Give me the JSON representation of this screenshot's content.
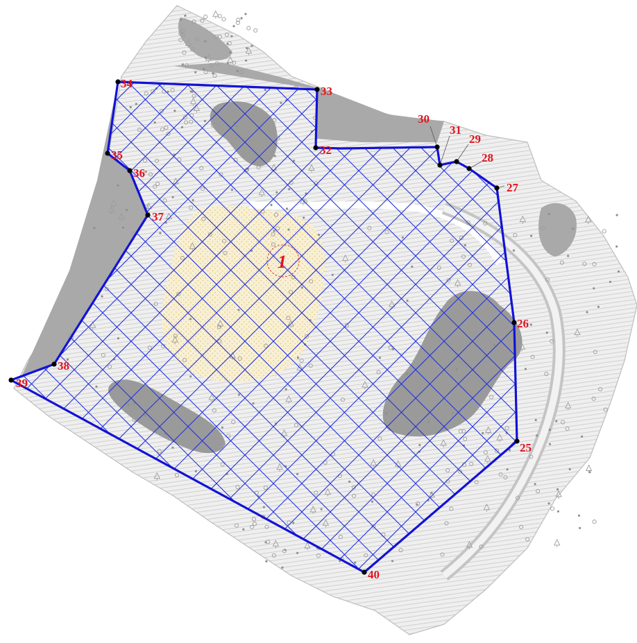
{
  "map": {
    "plot_label": "1",
    "colors": {
      "boundary": "#1212d6",
      "hatch": "#2030e0",
      "label": "#e0141e",
      "vertex": "#000000",
      "water": "#a9a9a9",
      "terrain": "#d9d9d9",
      "settlement": "#f6edc8"
    },
    "points": [
      {
        "id": "25",
        "label": "25"
      },
      {
        "id": "26",
        "label": "26"
      },
      {
        "id": "27",
        "label": "27"
      },
      {
        "id": "28",
        "label": "28"
      },
      {
        "id": "29",
        "label": "29"
      },
      {
        "id": "30",
        "label": "30"
      },
      {
        "id": "31",
        "label": "31"
      },
      {
        "id": "32",
        "label": "32"
      },
      {
        "id": "33",
        "label": "33"
      },
      {
        "id": "34",
        "label": "34"
      },
      {
        "id": "35",
        "label": "35"
      },
      {
        "id": "36",
        "label": "36"
      },
      {
        "id": "37",
        "label": "37"
      },
      {
        "id": "38",
        "label": "38"
      },
      {
        "id": "39",
        "label": "39"
      },
      {
        "id": "40",
        "label": "40"
      }
    ]
  }
}
